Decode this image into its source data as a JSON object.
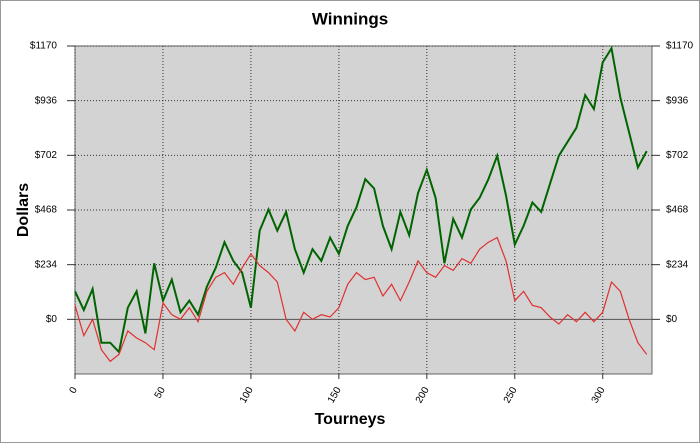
{
  "chart_data": {
    "type": "line",
    "title": "Winnings",
    "xlabel": "Tourneys",
    "ylabel": "Dollars",
    "x": [
      0,
      5,
      10,
      15,
      20,
      25,
      30,
      35,
      40,
      45,
      50,
      55,
      60,
      65,
      70,
      75,
      80,
      85,
      90,
      95,
      100,
      105,
      110,
      115,
      120,
      125,
      130,
      135,
      140,
      145,
      150,
      155,
      160,
      165,
      170,
      175,
      180,
      185,
      190,
      195,
      200,
      205,
      210,
      215,
      220,
      225,
      230,
      235,
      240,
      245,
      250,
      255,
      260,
      265,
      270,
      275,
      280,
      285,
      290,
      295,
      300,
      305,
      310,
      315,
      320,
      325
    ],
    "series": [
      {
        "color": "#006400",
        "values": [
          120,
          40,
          130,
          -100,
          -100,
          -140,
          50,
          120,
          -60,
          240,
          80,
          170,
          30,
          80,
          20,
          140,
          220,
          330,
          250,
          200,
          50,
          380,
          470,
          380,
          460,
          300,
          200,
          300,
          250,
          350,
          280,
          400,
          480,
          600,
          560,
          400,
          300,
          460,
          360,
          540,
          640,
          520,
          240,
          430,
          350,
          470,
          520,
          600,
          700,
          530,
          320,
          400,
          500,
          460,
          580,
          700,
          760,
          820,
          960,
          900,
          1100,
          1160,
          950,
          800,
          650,
          720
        ]
      },
      {
        "color": "#e03030",
        "values": [
          60,
          -70,
          0,
          -130,
          -180,
          -150,
          -50,
          -80,
          -100,
          -130,
          70,
          20,
          0,
          50,
          -10,
          120,
          180,
          200,
          150,
          220,
          280,
          230,
          200,
          160,
          0,
          -50,
          30,
          0,
          20,
          10,
          50,
          150,
          200,
          170,
          180,
          100,
          150,
          80,
          160,
          250,
          200,
          180,
          230,
          210,
          260,
          240,
          300,
          330,
          350,
          250,
          80,
          120,
          60,
          50,
          10,
          -20,
          20,
          -10,
          30,
          -10,
          30,
          160,
          120,
          0,
          -100,
          -150
        ]
      }
    ],
    "xlim": [
      0,
      328
    ],
    "xticks": [
      0,
      50,
      100,
      150,
      200,
      250,
      300
    ],
    "ylim": [
      -234,
      1170
    ],
    "yticks": [
      {
        "value": 0,
        "label": "$0"
      },
      {
        "value": 234,
        "label": "$234"
      },
      {
        "value": 468,
        "label": "$468"
      },
      {
        "value": 702,
        "label": "$702"
      },
      {
        "value": 936,
        "label": "$936"
      },
      {
        "value": 1170,
        "label": "$1170"
      }
    ],
    "grid": true
  }
}
